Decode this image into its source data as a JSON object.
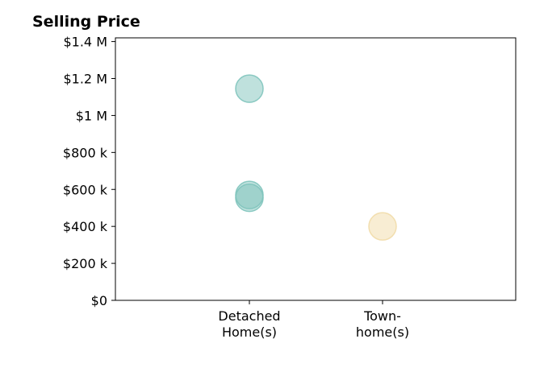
{
  "chart_data": {
    "type": "scatter",
    "title": "Selling Price",
    "xlabel": "",
    "ylabel": "",
    "categories": [
      "Detached\nHome(s)",
      "Town-\nhome(s)"
    ],
    "ylim": [
      0,
      1420000
    ],
    "y_ticks": [
      0,
      200000,
      400000,
      600000,
      800000,
      1000000,
      1200000,
      1400000
    ],
    "y_tick_labels": [
      "$0",
      "$200 k",
      "$400 k",
      "$600 k",
      "$800 k",
      "$1 M",
      "$1.2 M",
      "$1.4 M"
    ],
    "grid": false,
    "legend": "none",
    "series": [
      {
        "color": "#7fc4bc",
        "points": [
          {
            "category": "Detached\nHome(s)",
            "y": 1145000
          },
          {
            "category": "Detached\nHome(s)",
            "y": 570000
          },
          {
            "category": "Detached\nHome(s)",
            "y": 555000
          }
        ]
      },
      {
        "color": "#f1dca8",
        "points": [
          {
            "category": "Town-\nhome(s)",
            "y": 400000
          }
        ]
      }
    ]
  }
}
